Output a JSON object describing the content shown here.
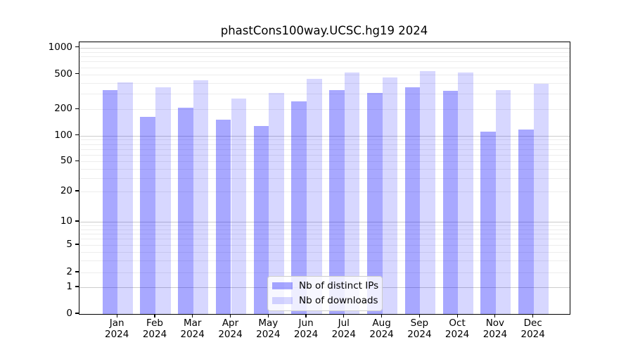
{
  "figure": {
    "background": "#ffffff"
  },
  "chart_data": {
    "type": "bar",
    "title": "phastCons100way.UCSC.hg19 2024",
    "categories": [
      "Jan 2024",
      "Feb 2024",
      "Mar 2024",
      "Apr 2024",
      "May 2024",
      "Jun 2024",
      "Jul 2024",
      "Aug 2024",
      "Sep 2024",
      "Oct 2024",
      "Nov 2024",
      "Dec 2024"
    ],
    "series": [
      {
        "name": "Nb of distinct IPs",
        "color": "rgba(0,0,255,0.34)",
        "values": [
          330,
          164,
          209,
          152,
          129,
          247,
          331,
          306,
          357,
          325,
          112,
          118
        ]
      },
      {
        "name": "Nb of downloads",
        "color": "rgba(0,0,255,0.155)",
        "values": [
          408,
          357,
          429,
          266,
          308,
          443,
          526,
          465,
          540,
          528,
          331,
          394
        ]
      }
    ],
    "xlabel": "",
    "ylabel": "",
    "yscale": "symlog",
    "ylim": [
      0,
      1000
    ],
    "yticks": [
      1000,
      500,
      200,
      100,
      50,
      20,
      10,
      5,
      2,
      1,
      0
    ],
    "grid": true,
    "legend_position": "lower center",
    "grid_major_color": "#cccccc",
    "grid_minor_color": "#ededed"
  }
}
